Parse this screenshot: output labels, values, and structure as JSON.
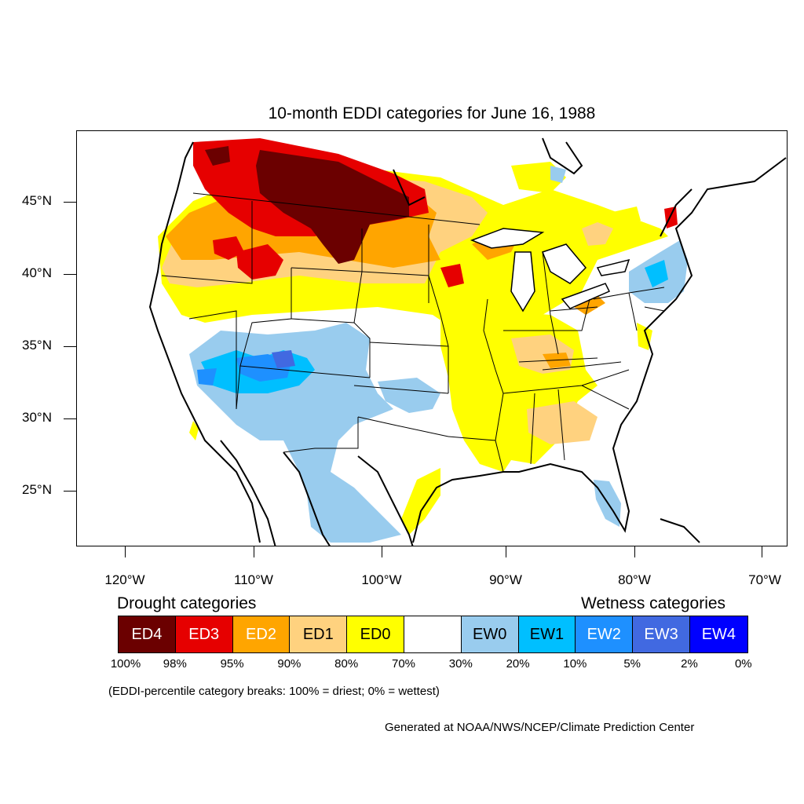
{
  "title": "10-month EDDI categories for June 16, 1988",
  "map": {
    "region": "Contiguous United States",
    "lat_labels": [
      "45°N",
      "40°N",
      "35°N",
      "30°N",
      "25°N"
    ],
    "lon_labels": [
      "120°W",
      "110°W",
      "100°W",
      "90°W",
      "80°W",
      "70°W"
    ],
    "lat_range": [
      21,
      49.5
    ],
    "lon_range": [
      -124,
      -68
    ],
    "background_color": "#ffffff",
    "border_color": "#000000"
  },
  "legend": {
    "drought_heading": "Drought categories",
    "wetness_heading": "Wetness categories",
    "categories": [
      {
        "label": "ED4",
        "color": "#6b0000",
        "text_color": "#ffffff"
      },
      {
        "label": "ED3",
        "color": "#e60000",
        "text_color": "#ffffff"
      },
      {
        "label": "ED2",
        "color": "#ffa500",
        "text_color": "#ffffff"
      },
      {
        "label": "ED1",
        "color": "#ffd27f",
        "text_color": "#000000"
      },
      {
        "label": "ED0",
        "color": "#ffff00",
        "text_color": "#000000"
      },
      {
        "label": "",
        "color": "#ffffff",
        "text_color": "#000000"
      },
      {
        "label": "EW0",
        "color": "#99ccee",
        "text_color": "#000000"
      },
      {
        "label": "EW1",
        "color": "#00bfff",
        "text_color": "#000000"
      },
      {
        "label": "EW2",
        "color": "#1e90ff",
        "text_color": "#ffffff"
      },
      {
        "label": "EW3",
        "color": "#4169e1",
        "text_color": "#ffffff"
      },
      {
        "label": "EW4",
        "color": "#0000ff",
        "text_color": "#ffffff"
      }
    ],
    "percentile_breaks": [
      "100%",
      "98%",
      "95%",
      "90%",
      "80%",
      "70%",
      "30%",
      "20%",
      "10%",
      "5%",
      "2%",
      "0%"
    ],
    "note": "(EDDI-percentile category breaks: 100% = driest; 0% = wettest)"
  },
  "credit": "Generated at NOAA/NWS/NCEP/Climate Prediction Center"
}
